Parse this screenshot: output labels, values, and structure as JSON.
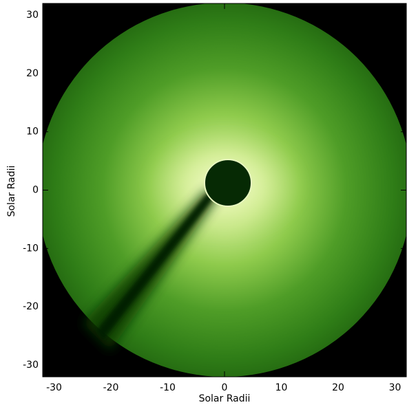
{
  "chart_data": {
    "type": "image",
    "xlabel": "Solar Radii",
    "ylabel": "Solar Radii",
    "xlim": [
      -32,
      32
    ],
    "ylim": [
      -32,
      32
    ],
    "xticks": [
      -30,
      -20,
      -10,
      0,
      10,
      20,
      30
    ],
    "yticks": [
      -30,
      -20,
      -10,
      0,
      10,
      20,
      30
    ]
  }
}
